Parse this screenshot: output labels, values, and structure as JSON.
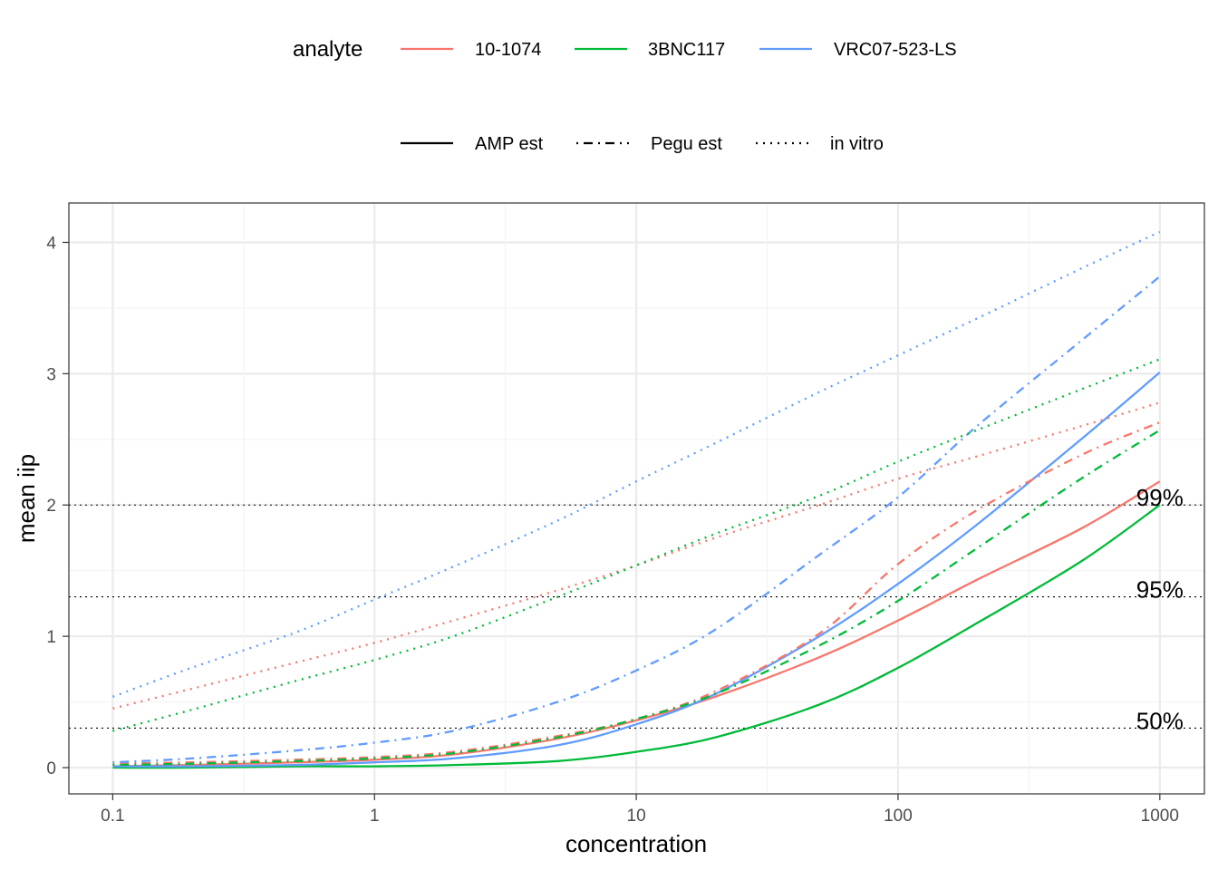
{
  "chart_data": {
    "type": "line",
    "xlabel": "concentration",
    "ylabel": "mean iip",
    "x_scale": "log10",
    "xlim": [
      0.068,
      1480
    ],
    "ylim": [
      -0.2,
      4.3
    ],
    "x_ticks": [
      0.1,
      1,
      10,
      100,
      1000
    ],
    "x_tick_labels": [
      "0.1",
      "1",
      "10",
      "100",
      "1000"
    ],
    "y_ticks": [
      0,
      1,
      2,
      3,
      4
    ],
    "y_tick_labels": [
      "0",
      "1",
      "2",
      "3",
      "4"
    ],
    "grid": true,
    "legend_position": "top",
    "legend_color": {
      "title": "analyte",
      "entries": [
        {
          "label": "10-1074",
          "color": "#F8766D"
        },
        {
          "label": "3BNC117",
          "color": "#00BA38"
        },
        {
          "label": "VRC07-523-LS",
          "color": "#619CFF"
        }
      ]
    },
    "legend_linetype": {
      "entries": [
        {
          "label": "AMP est",
          "dash": "solid"
        },
        {
          "label": "Pegu est",
          "dash": "dotdash"
        },
        {
          "label": "in vitro",
          "dash": "dotted"
        }
      ]
    },
    "reference_lines": [
      {
        "y": 0.301,
        "label": "50%"
      },
      {
        "y": 1.301,
        "label": "95%"
      },
      {
        "y": 2.0,
        "label": "99%"
      }
    ],
    "x": [
      0.1,
      0.2,
      0.5,
      1,
      2,
      5,
      10,
      20,
      50,
      100,
      200,
      500,
      1000
    ],
    "series": [
      {
        "name": "10-1074",
        "estimate": "AMP est",
        "color": "#F8766D",
        "dash": "solid",
        "values": [
          0.01,
          0.02,
          0.04,
          0.06,
          0.1,
          0.22,
          0.36,
          0.54,
          0.84,
          1.12,
          1.43,
          1.82,
          2.18
        ]
      },
      {
        "name": "3BNC117",
        "estimate": "AMP est",
        "color": "#00BA38",
        "dash": "solid",
        "values": [
          0.0,
          0.0,
          0.01,
          0.01,
          0.02,
          0.05,
          0.12,
          0.23,
          0.48,
          0.76,
          1.1,
          1.57,
          2.0
        ]
      },
      {
        "name": "VRC07-523-LS",
        "estimate": "AMP est",
        "color": "#619CFF",
        "dash": "solid",
        "values": [
          0.01,
          0.01,
          0.02,
          0.04,
          0.07,
          0.17,
          0.33,
          0.56,
          1.0,
          1.4,
          1.85,
          2.5,
          3.01
        ]
      },
      {
        "name": "10-1074",
        "estimate": "Pegu est",
        "color": "#F8766D",
        "dash": "dotdash",
        "values": [
          0.03,
          0.04,
          0.06,
          0.08,
          0.12,
          0.24,
          0.37,
          0.58,
          1.02,
          1.55,
          1.96,
          2.38,
          2.63
        ]
      },
      {
        "name": "3BNC117",
        "estimate": "Pegu est",
        "color": "#00BA38",
        "dash": "dotdash",
        "values": [
          0.02,
          0.03,
          0.05,
          0.07,
          0.11,
          0.23,
          0.37,
          0.56,
          0.93,
          1.27,
          1.67,
          2.2,
          2.57
        ]
      },
      {
        "name": "VRC07-523-LS",
        "estimate": "Pegu est",
        "color": "#619CFF",
        "dash": "dotdash",
        "values": [
          0.04,
          0.07,
          0.13,
          0.19,
          0.28,
          0.5,
          0.74,
          1.05,
          1.62,
          2.06,
          2.6,
          3.25,
          3.74
        ]
      },
      {
        "name": "10-1074",
        "estimate": "in vitro",
        "color": "#F8766D",
        "dash": "dotted",
        "values": [
          0.45,
          0.6,
          0.8,
          0.95,
          1.12,
          1.35,
          1.54,
          1.75,
          2.0,
          2.2,
          2.37,
          2.6,
          2.78
        ]
      },
      {
        "name": "3BNC117",
        "estimate": "in vitro",
        "color": "#00BA38",
        "dash": "dotted",
        "values": [
          0.28,
          0.44,
          0.66,
          0.82,
          1.0,
          1.3,
          1.54,
          1.78,
          2.07,
          2.33,
          2.57,
          2.88,
          3.11
        ]
      },
      {
        "name": "VRC07-523-LS",
        "estimate": "in vitro",
        "color": "#619CFF",
        "dash": "dotted",
        "values": [
          0.54,
          0.76,
          1.03,
          1.28,
          1.53,
          1.88,
          2.18,
          2.47,
          2.86,
          3.14,
          3.42,
          3.8,
          4.08
        ]
      }
    ]
  }
}
